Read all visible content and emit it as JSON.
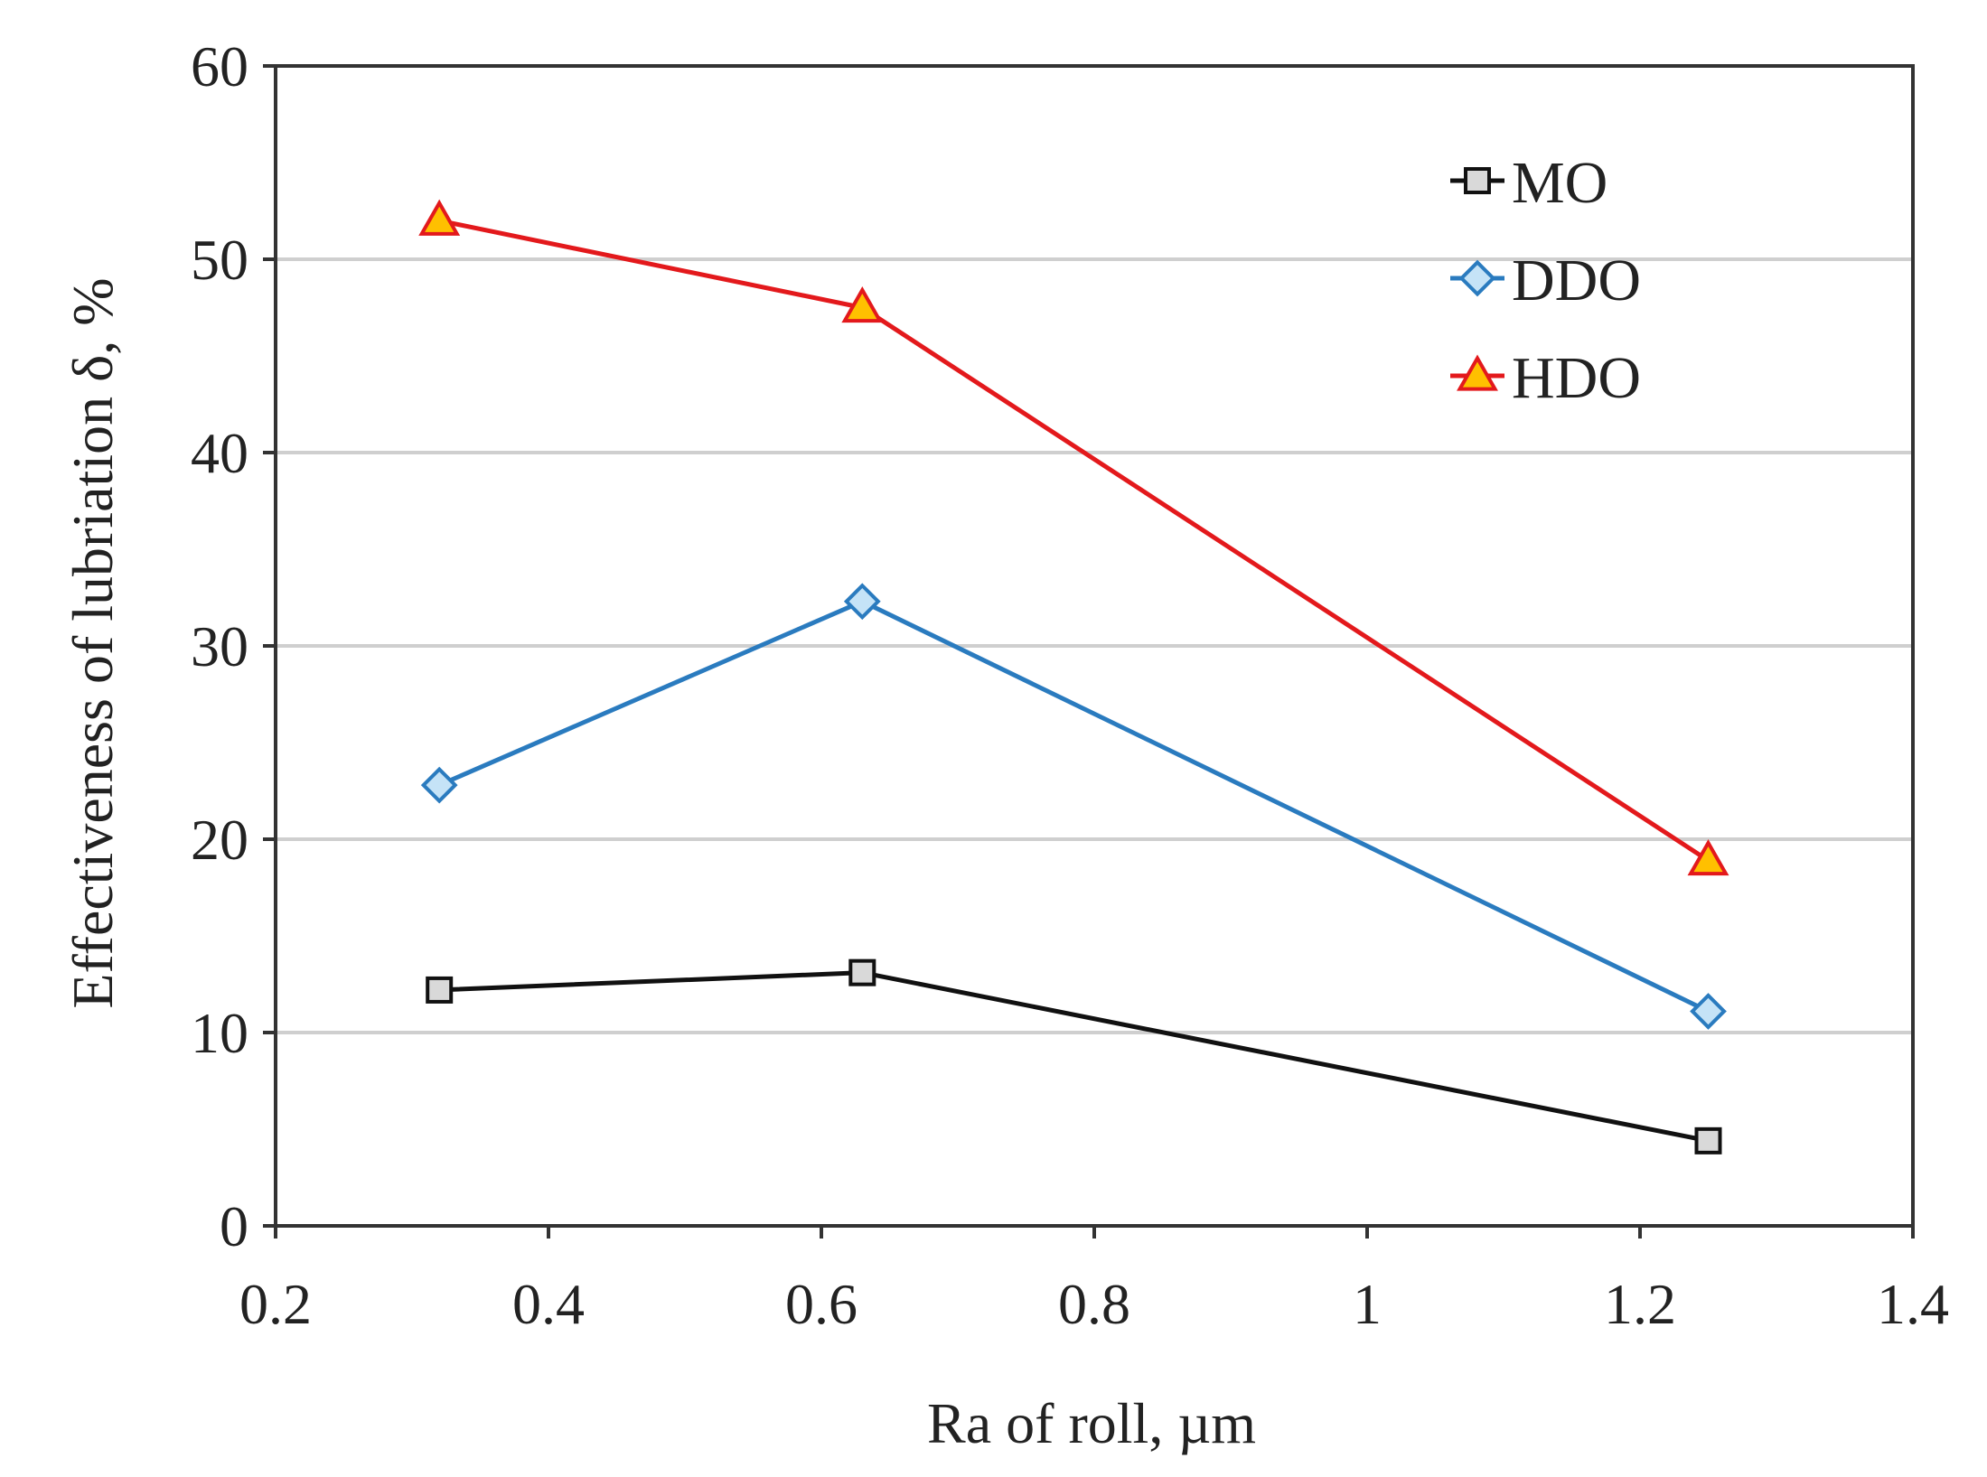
{
  "chart_data": {
    "type": "line",
    "title": "",
    "xlabel": "Ra of roll, µm",
    "ylabel": "Effectiveness of lubriation δ, %",
    "xlim": [
      0.2,
      1.4
    ],
    "ylim": [
      0,
      60
    ],
    "xticks": [
      0.2,
      0.4,
      0.6,
      0.8,
      1,
      1.2,
      1.4
    ],
    "xtick_labels": [
      "0.2",
      "0.4",
      "0.6",
      "0.8",
      "1",
      "1.2",
      "1.4"
    ],
    "yticks": [
      0,
      10,
      20,
      30,
      40,
      50,
      60
    ],
    "ytick_labels": [
      "0",
      "10",
      "20",
      "30",
      "40",
      "50",
      "60"
    ],
    "grid": "horizontal",
    "legend_position": "top-right",
    "x": [
      0.32,
      0.63,
      1.25
    ],
    "series": [
      {
        "name": "MO",
        "values": [
          12.2,
          13.1,
          4.4
        ],
        "color": "#111111",
        "marker": "square",
        "marker_fill": "#d9d9d9"
      },
      {
        "name": "DDO",
        "values": [
          22.8,
          32.3,
          11.1
        ],
        "color": "#2a7bbf",
        "marker": "diamond",
        "marker_fill": "#c5e3f7"
      },
      {
        "name": "HDO",
        "values": [
          52.0,
          47.5,
          18.9
        ],
        "color": "#e3191c",
        "marker": "triangle",
        "marker_fill": "#ffc000"
      }
    ]
  },
  "colors": {
    "grid": "#cfcfcf",
    "frame": "#333333",
    "text": "#222222"
  }
}
